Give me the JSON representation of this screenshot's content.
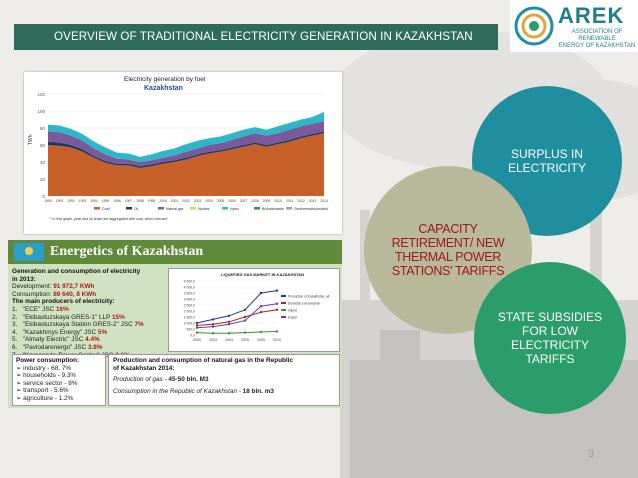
{
  "slide": {
    "title": "OVERVIEW OF TRADITIONAL ELECTRICITY GENERATION IN KAZAKHSTAN",
    "page_number": "3",
    "colors": {
      "banner": "#2f6b5a",
      "teal": "#1f8fa0",
      "olive": "#b8b89a",
      "green": "#2a9d6a"
    }
  },
  "logo": {
    "name": "AREK",
    "subtitle_line1": "ASSOCIATION OF RENEWABLE",
    "subtitle_line2": "ENERGY OF KAZAKHSTAN",
    "icon": "arek-swirl-icon"
  },
  "circles": {
    "surplus": {
      "line1": "SURPLUS IN",
      "line2": "ELECTRICITY"
    },
    "capacity": {
      "line1": "CAPACITY",
      "line2": "RETIREMENT/ NEW",
      "line3": "THERMAL POWER",
      "line4": "STATIONS' TARIFFS"
    },
    "subsidies": {
      "line1": "STATE SUBSIDIES",
      "line2": "FOR LOW",
      "line3": "ELECTRICITY",
      "line4": "TARIFFS"
    }
  },
  "chart_data": [
    {
      "type": "area",
      "title": "Electricity generation by fuel",
      "subtitle": "Kazakhstan",
      "ylabel": "TWh",
      "xlabel": "",
      "ylim": [
        0,
        120
      ],
      "x": [
        "1990",
        "1991",
        "1992",
        "1993",
        "1994",
        "1995",
        "1996",
        "1997",
        "1998",
        "1999",
        "2000",
        "2001",
        "2002",
        "2003",
        "2004",
        "2005",
        "2006",
        "2007",
        "2008",
        "2009",
        "2010",
        "2011",
        "2012",
        "2013",
        "2014"
      ],
      "series": [
        {
          "name": "Coal*",
          "color": "#c8602a",
          "values": [
            60,
            59,
            57,
            52,
            45,
            39,
            36,
            36,
            33,
            35,
            38,
            40,
            43,
            47,
            50,
            52,
            55,
            58,
            61,
            58,
            61,
            64,
            68,
            71,
            74
          ]
        },
        {
          "name": "Oil",
          "color": "#1f3a5f",
          "values": [
            4,
            4,
            3,
            3,
            2,
            2,
            2,
            2,
            2,
            2,
            2,
            2,
            2,
            2,
            2,
            2,
            2,
            2,
            2,
            2,
            2,
            2,
            2,
            2,
            2
          ]
        },
        {
          "name": "Natural gas",
          "color": "#7a5a9a",
          "values": [
            12,
            12,
            11,
            10,
            9,
            8,
            6,
            5,
            5,
            5,
            5,
            6,
            7,
            7,
            8,
            8,
            9,
            10,
            11,
            11,
            11,
            12,
            12,
            12,
            12
          ]
        },
        {
          "name": "Hydro",
          "color": "#2fb7c9",
          "values": [
            8,
            8,
            8,
            8,
            8,
            8,
            7,
            7,
            6,
            7,
            8,
            8,
            9,
            9,
            8,
            8,
            8,
            8,
            7,
            7,
            8,
            8,
            8,
            8,
            11
          ]
        }
      ],
      "legend": [
        "Coal*",
        "Oil",
        "Natural gas",
        "Nuclear",
        "Hydro",
        "Biofuels/waste",
        "Geothermal/solar/wind"
      ],
      "legend_position": "bottom",
      "footnote": "* In this graph, peat and oil shale are aggregated with coal, when relevant."
    },
    {
      "type": "line",
      "title": "LIQUEFIED GAS MARKET IN KAZAKHSTAN",
      "x": [
        "2000",
        "2003",
        "2004",
        "2005",
        "2009",
        "2010"
      ],
      "ylim": [
        0,
        4500
      ],
      "y_ticks": [
        "4 500,0",
        "4 000,0",
        "3 500,0",
        "3 000,0",
        "2 500,0",
        "2 000,0",
        "1 500,0",
        "1 000,0",
        "500,0",
        "0,0"
      ],
      "series": [
        {
          "name": "Production of Kazakhstan, all",
          "color": "#1f3a8f",
          "values": [
            1000,
            1300,
            1600,
            2100,
            3500,
            3700
          ]
        },
        {
          "name": "Domestic consumption",
          "color": "#9a2a2a",
          "values": [
            800,
            900,
            1100,
            1500,
            1900,
            2100
          ]
        },
        {
          "name": "Import",
          "color": "#3a8f3a",
          "values": [
            200,
            150,
            150,
            200,
            250,
            300
          ]
        },
        {
          "name": "Export",
          "color": "#6a3a9a",
          "values": [
            600,
            700,
            900,
            1200,
            2400,
            2600
          ]
        }
      ],
      "legend_position": "right"
    }
  ],
  "energetics": {
    "heading": "Energetics of Kazakhstan",
    "gen_title1": "Generation and consumption of electricity",
    "gen_title2": "in 2013:",
    "development_label": "Development:",
    "development_value": "91 972,7 KWh",
    "consumption_label": "Consumption:",
    "consumption_value": "89 640, 8 KWh",
    "producers_title": "The main producers of electricity:",
    "producers": [
      {
        "n": "1.",
        "name": "\"ECE\" JSC",
        "pct": "16%"
      },
      {
        "n": "2.",
        "name": "\"Ekibastuzskaya GRES-1\" LLP",
        "pct": "15%"
      },
      {
        "n": "3.",
        "name": "\"Ekibastuzskaya Station GRES-2\" JSC",
        "pct": "7%"
      },
      {
        "n": "4.",
        "name": "\"Kazakhmys Energy\" JSC",
        "pct": "5%"
      },
      {
        "n": "5.",
        "name": "\"Almaty Electric\" JSC",
        "pct": "4.4%"
      },
      {
        "n": "6.",
        "name": "\"Pavlodarenergo\" JSC",
        "pct": "3.8%"
      },
      {
        "n": "7.",
        "name": "\"Karaganda-Power Center\" JSC",
        "pct": "3.6%"
      }
    ],
    "power_title": "Power consumption:",
    "power_items": [
      "industry - 68, 7%",
      "households - 9.3%",
      "service sector - 8%",
      "transport - 5.6%",
      "agriculture - 1.2%"
    ],
    "gas_title1": "Production and consumption of natural gas in the Republic",
    "gas_title2": "of Kazakhstan 2014:",
    "gas_production_label": "Production of gas -",
    "gas_production_value": "45-50 bln. M3",
    "gas_consumption_label": "Consumption in the Republic of Kazakhstan -",
    "gas_consumption_value": "18 bln. m3"
  }
}
